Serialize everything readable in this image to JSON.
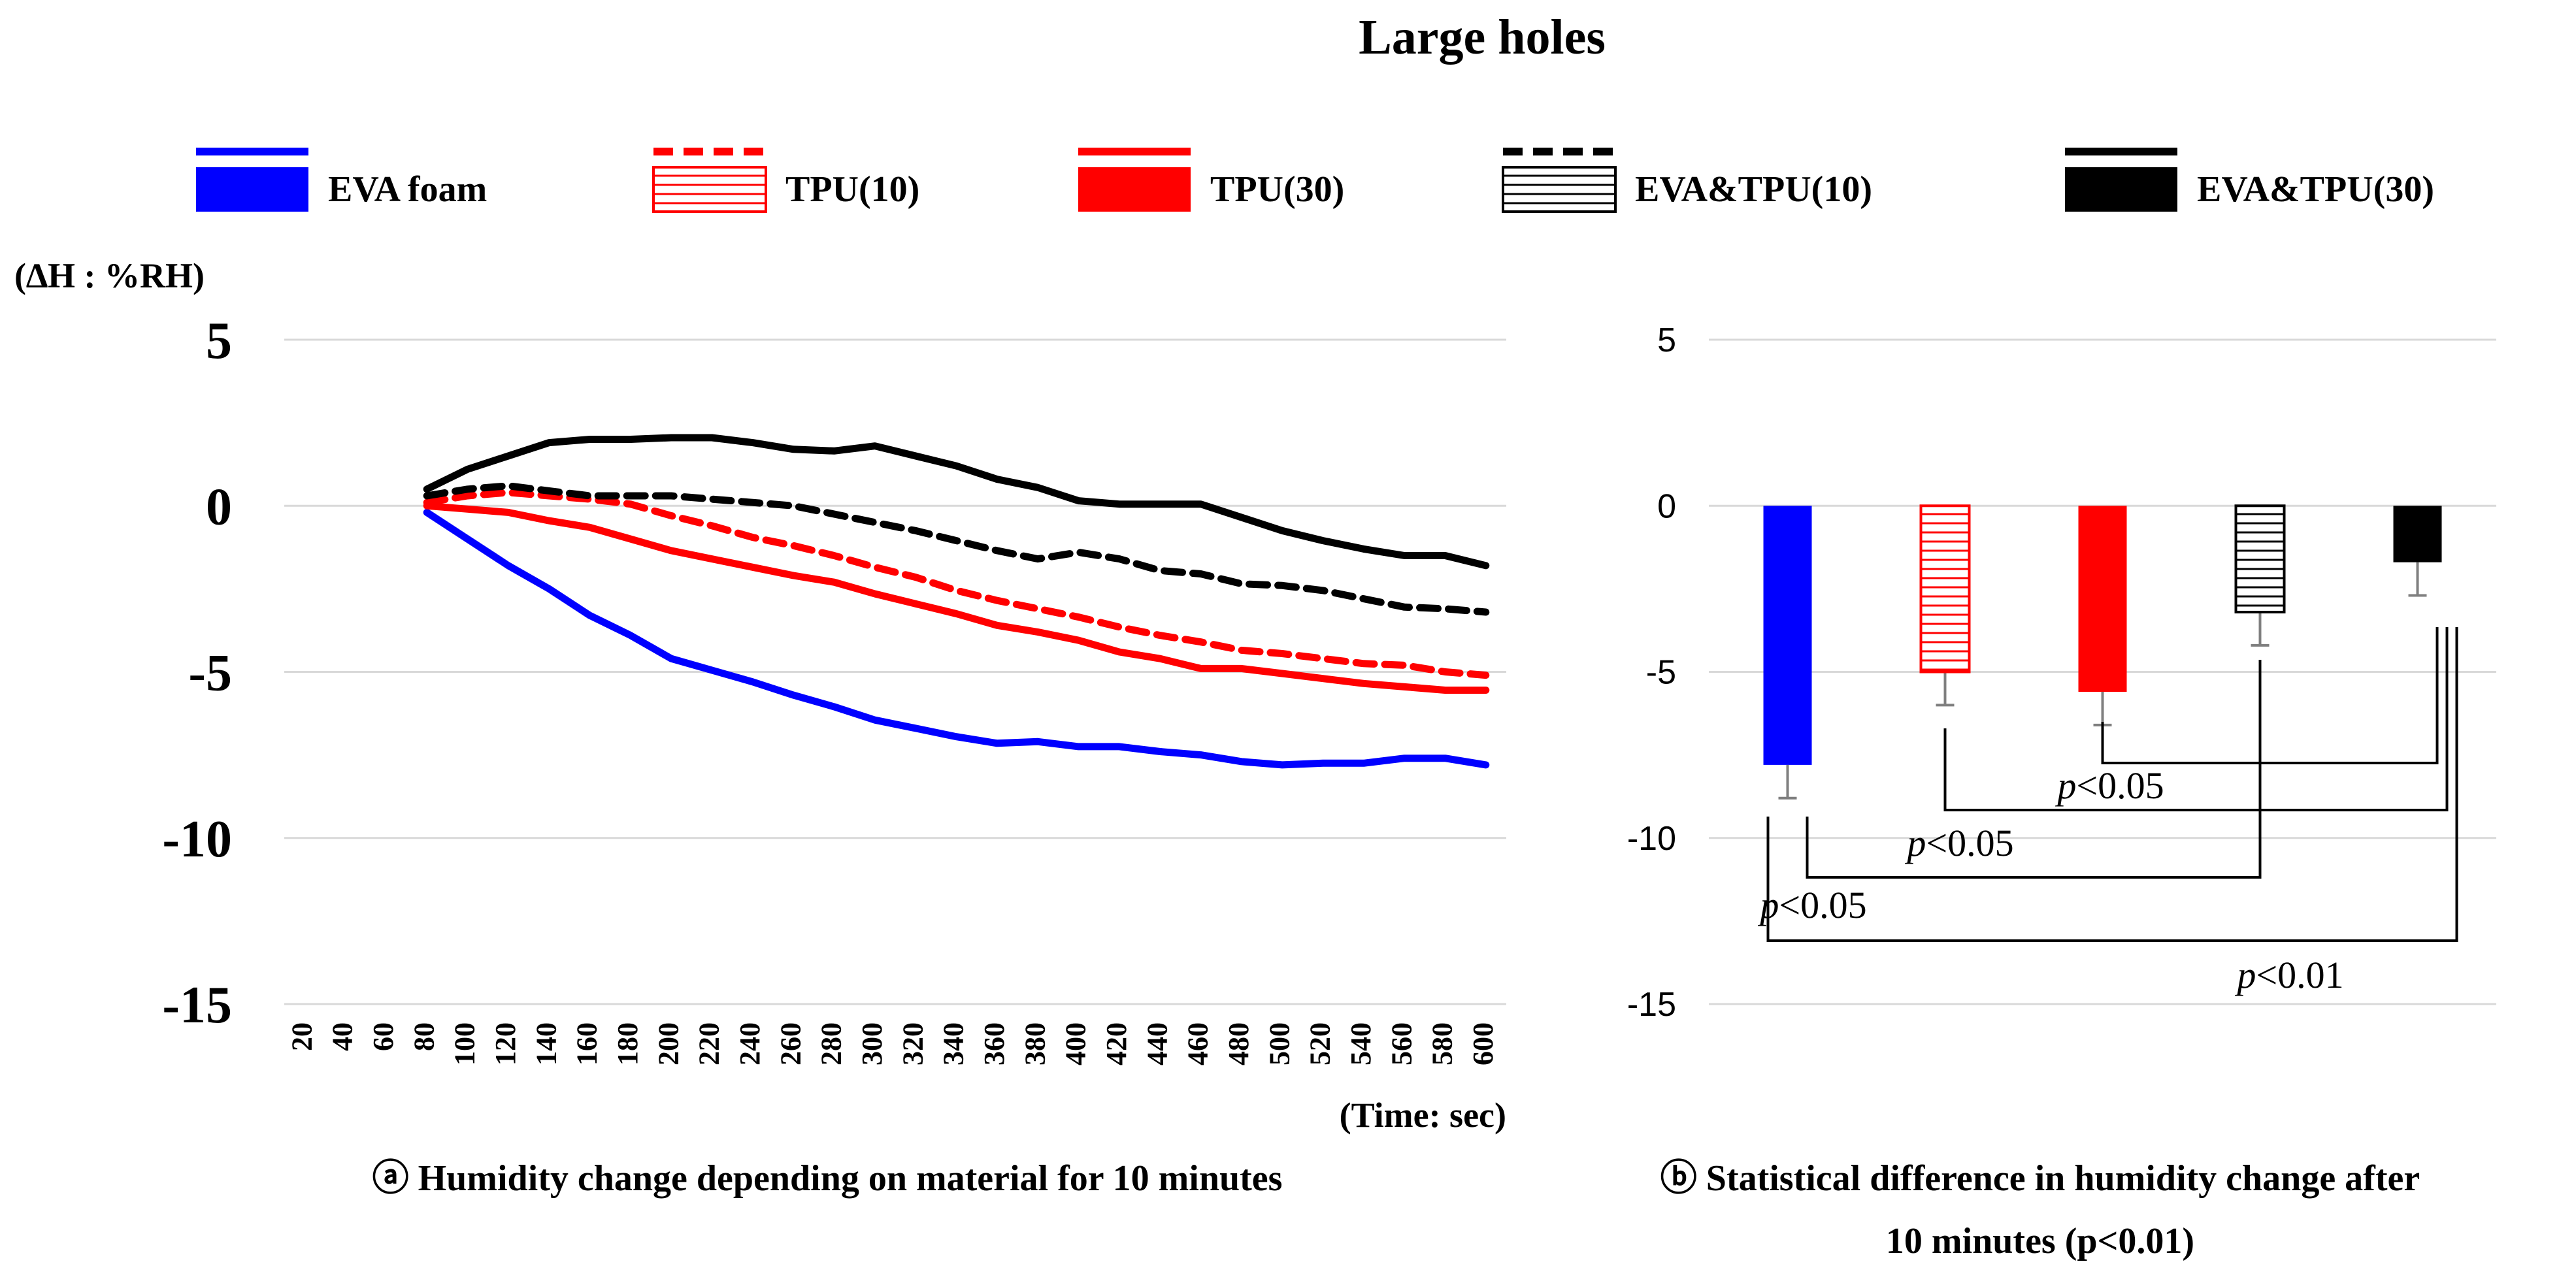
{
  "title": "Large holes",
  "colors": {
    "blue": "#0000ff",
    "red": "#ff0000",
    "black": "#000000",
    "grid": "#d9d9d9"
  },
  "legend": [
    {
      "label": "EVA foam",
      "color": "#0000ff",
      "line": "solid",
      "fill": "solid"
    },
    {
      "label": "TPU(10)",
      "color": "#ff0000",
      "line": "dashed",
      "fill": "hatched"
    },
    {
      "label": "TPU(30)",
      "color": "#ff0000",
      "line": "solid",
      "fill": "solid"
    },
    {
      "label": "EVA&TPU(10)",
      "color": "#000000",
      "line": "dashed",
      "fill": "hatched"
    },
    {
      "label": "EVA&TPU(30)",
      "color": "#000000",
      "line": "solid",
      "fill": "solid"
    }
  ],
  "chart_data": [
    {
      "type": "line",
      "title": "ⓐ Humidity change depending on material for 10 minutes",
      "ylabel": "(∆H : %RH)",
      "xlabel": "(Time: sec)",
      "ylim": [
        -15,
        5
      ],
      "yticks": [
        "5",
        "0",
        "-5",
        "-10",
        "-15"
      ],
      "grid": true,
      "x": [
        20,
        40,
        60,
        80,
        100,
        120,
        140,
        160,
        180,
        200,
        220,
        240,
        260,
        280,
        300,
        320,
        340,
        360,
        380,
        400,
        420,
        440,
        460,
        480,
        500,
        520,
        540,
        560,
        580,
        600
      ],
      "x_tick_labels": [
        "20",
        "40",
        "60",
        "80",
        "100",
        "120",
        "140",
        "160",
        "180",
        "200",
        "220",
        "240",
        "260",
        "280",
        "300",
        "320",
        "340",
        "360",
        "380",
        "400",
        "420",
        "440",
        "460",
        "480",
        "500",
        "520",
        "540",
        "560",
        "580",
        "600"
      ],
      "series": [
        {
          "name": "EVA foam",
          "color": "#0000ff",
          "dash": "solid",
          "values": [
            null,
            null,
            null,
            -0.2,
            -1.0,
            -1.8,
            -2.5,
            -3.3,
            -3.9,
            -4.6,
            -4.95,
            -5.3,
            -5.7,
            -6.05,
            -6.45,
            -6.7,
            -6.95,
            -7.15,
            -7.1,
            -7.25,
            -7.25,
            -7.4,
            -7.5,
            -7.7,
            -7.8,
            -7.75,
            -7.75,
            -7.6,
            -7.6,
            -7.8
          ]
        },
        {
          "name": "TPU(10)",
          "color": "#ff0000",
          "dash": "dashed",
          "values": [
            null,
            null,
            null,
            0.1,
            0.3,
            0.4,
            0.3,
            0.2,
            0.05,
            -0.3,
            -0.6,
            -0.95,
            -1.2,
            -1.5,
            -1.85,
            -2.15,
            -2.55,
            -2.85,
            -3.1,
            -3.35,
            -3.65,
            -3.9,
            -4.1,
            -4.35,
            -4.45,
            -4.6,
            -4.75,
            -4.8,
            -5.0,
            -5.1
          ]
        },
        {
          "name": "TPU(30)",
          "color": "#ff0000",
          "dash": "solid",
          "values": [
            null,
            null,
            null,
            0.0,
            -0.1,
            -0.2,
            -0.45,
            -0.65,
            -1.0,
            -1.35,
            -1.6,
            -1.85,
            -2.1,
            -2.3,
            -2.65,
            -2.95,
            -3.25,
            -3.6,
            -3.8,
            -4.05,
            -4.4,
            -4.6,
            -4.9,
            -4.9,
            -5.05,
            -5.2,
            -5.35,
            -5.45,
            -5.55,
            -5.55
          ]
        },
        {
          "name": "EVA&TPU(10)",
          "color": "#000000",
          "dash": "dashed",
          "values": [
            null,
            null,
            null,
            0.3,
            0.5,
            0.6,
            0.45,
            0.3,
            0.3,
            0.3,
            0.2,
            0.1,
            0.0,
            -0.25,
            -0.5,
            -0.75,
            -1.05,
            -1.35,
            -1.6,
            -1.4,
            -1.6,
            -1.95,
            -2.05,
            -2.35,
            -2.4,
            -2.55,
            -2.8,
            -3.05,
            -3.1,
            -3.2
          ]
        },
        {
          "name": "EVA&TPU(30)",
          "color": "#000000",
          "dash": "solid",
          "values": [
            null,
            null,
            null,
            0.5,
            1.1,
            1.5,
            1.9,
            2.0,
            2.0,
            2.05,
            2.05,
            1.9,
            1.7,
            1.65,
            1.8,
            1.5,
            1.2,
            0.8,
            0.55,
            0.15,
            0.05,
            0.05,
            0.05,
            -0.35,
            -0.75,
            -1.05,
            -1.3,
            -1.5,
            -1.5,
            -1.8
          ]
        }
      ]
    },
    {
      "type": "bar",
      "title": "ⓑ Statistical difference in humidity change after 10 minutes (p<0.01)",
      "title_lines": [
        "ⓑ Statistical difference in humidity change after",
        "10 minutes (p<0.01)"
      ],
      "ylim": [
        -15,
        5
      ],
      "yticks": [
        "5",
        "0",
        "-5",
        "-10",
        "-15"
      ],
      "grid": true,
      "categories": [
        "EVA foam",
        "TPU(10)",
        "TPU(30)",
        "EVA&TPU(10)",
        "EVA&TPU(30)"
      ],
      "values": [
        -7.8,
        -5.0,
        -5.6,
        -3.2,
        -1.7
      ],
      "errors": [
        1.0,
        1.0,
        1.0,
        1.0,
        1.0
      ],
      "comparisons": [
        {
          "from": "TPU(30)",
          "to": "EVA&TPU(30)",
          "label": "p<0.05"
        },
        {
          "from": "TPU(10)",
          "to": "EVA&TPU(30)",
          "label": "p<0.05"
        },
        {
          "from": "EVA foam",
          "to": "EVA&TPU(10)",
          "label": "p<0.05"
        },
        {
          "from": "EVA foam",
          "to": "EVA&TPU(30)",
          "label": "p<0.01"
        }
      ]
    }
  ]
}
